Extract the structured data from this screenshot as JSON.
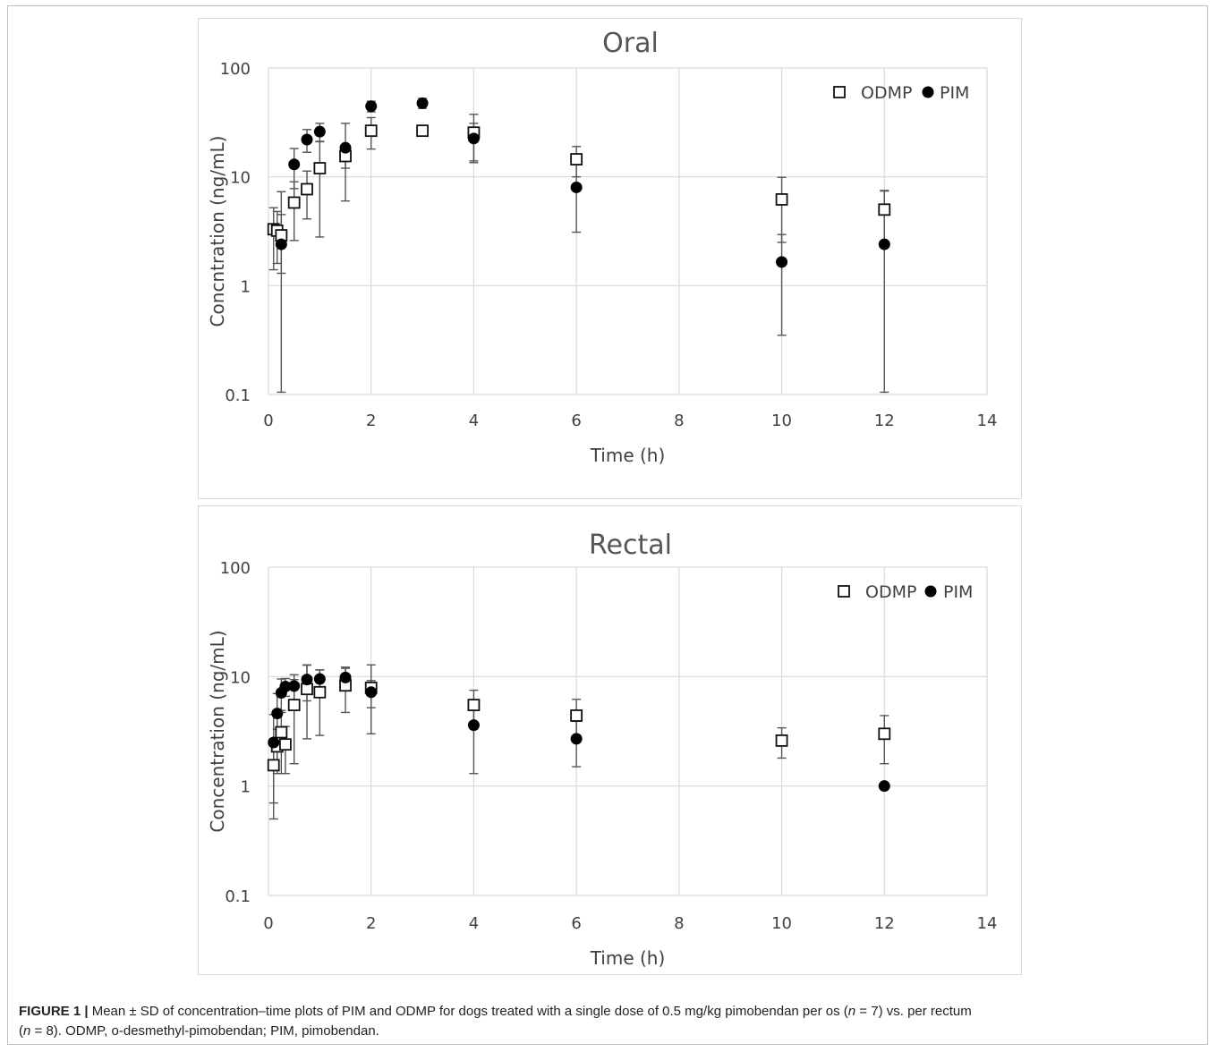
{
  "chart_data": [
    {
      "type": "scatter",
      "title": "Oral",
      "xlabel": "Time (h)",
      "ylabel": "Concntration (ng/mL)",
      "xlim": [
        0,
        14
      ],
      "ylim": [
        0.1,
        100
      ],
      "yscale": "log",
      "x_ticks": [
        "0",
        "2",
        "4",
        "6",
        "8",
        "10",
        "12",
        "14"
      ],
      "y_ticks": [
        "0.1",
        "1",
        "10",
        "100"
      ],
      "grid": true,
      "legend_position": "top-right",
      "series": [
        {
          "name": "ODMP",
          "marker": "open-square",
          "x": [
            0.1,
            0.17,
            0.25,
            0.5,
            0.75,
            1,
            1.5,
            2,
            3,
            4,
            6,
            10,
            12
          ],
          "y": [
            3.3,
            3.2,
            2.9,
            5.8,
            7.7,
            12,
            15.5,
            26.5,
            26.5,
            25.5,
            14.5,
            6.2,
            5.0
          ],
          "err": [
            1.9,
            1.6,
            1.6,
            3.2,
            3.6,
            9.2,
            3.5,
            8.5,
            2.0,
            12,
            4.5,
            3.7,
            2.5
          ]
        },
        {
          "name": "PIM",
          "marker": "filled-circle",
          "x": [
            0.25,
            0.5,
            0.75,
            1,
            1.5,
            2,
            3,
            4,
            6,
            10,
            12
          ],
          "y": [
            2.4,
            13,
            22,
            26,
            18.5,
            44.5,
            47.5,
            22.5,
            8.0,
            1.65,
            2.4
          ],
          "err": [
            4.9,
            5.2,
            5.2,
            5.0,
            12.5,
            5.0,
            5.0,
            8.5,
            4.9,
            1.3,
            5.0
          ]
        }
      ]
    },
    {
      "type": "scatter",
      "title": "Rectal",
      "xlabel": "Time (h)",
      "ylabel": "Concentration (ng/mL)",
      "xlim": [
        0,
        14
      ],
      "ylim": [
        0.1,
        100
      ],
      "yscale": "log",
      "x_ticks": [
        "0",
        "2",
        "4",
        "6",
        "8",
        "10",
        "12",
        "14"
      ],
      "y_ticks": [
        "0.1",
        "1",
        "10",
        "100"
      ],
      "grid": true,
      "legend_position": "top-right",
      "series": [
        {
          "name": "ODMP",
          "marker": "open-square",
          "x": [
            0.1,
            0.17,
            0.25,
            0.33,
            0.5,
            0.75,
            1,
            1.5,
            2,
            4,
            6,
            10,
            12
          ],
          "y": [
            1.55,
            2.3,
            3.1,
            2.4,
            5.5,
            7.7,
            7.2,
            8.3,
            7.9,
            5.5,
            4.4,
            2.6,
            3.0
          ],
          "err": [
            0.85,
            1.0,
            1.8,
            1.1,
            3.9,
            5.0,
            4.3,
            3.6,
            4.9,
            2.0,
            1.8,
            0.8,
            1.4
          ]
        },
        {
          "name": "PIM",
          "marker": "filled-circle",
          "x": [
            0.1,
            0.17,
            0.25,
            0.33,
            0.5,
            0.75,
            1,
            1.5,
            2,
            4,
            6,
            12
          ],
          "y": [
            2.5,
            4.6,
            7.1,
            8.1,
            8.2,
            9.4,
            9.5,
            9.8,
            7.2,
            3.6,
            2.7,
            1.0
          ],
          "err": [
            2.0,
            2.4,
            2.4,
            1.5,
            2.2,
            3.4,
            2.0,
            2.4,
            2.0,
            2.3,
            1.2,
            0
          ]
        }
      ]
    }
  ],
  "caption": {
    "label": "FIGURE 1 |",
    "text_1": " Mean ± SD of concentration–time plots of PIM and ODMP for dogs treated with a single dose of 0.5 mg/kg pimobendan per os (",
    "n_var_1": "n",
    "text_2": " = 7) vs. per rectum",
    "text_3": "(",
    "n_var_2": "n",
    "text_4": " = 8). ODMP, o-desmethyl-pimobendan; PIM, pimobendan."
  }
}
